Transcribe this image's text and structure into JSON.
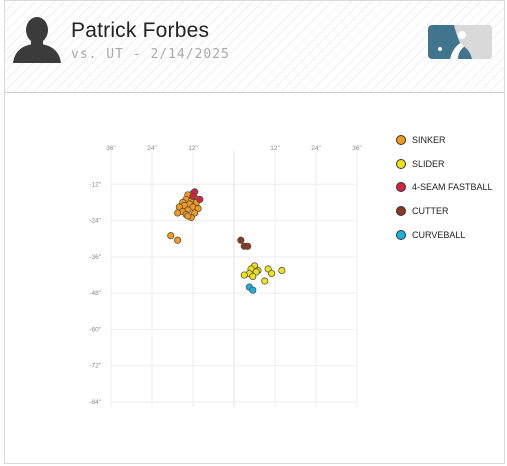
{
  "header": {
    "player_name": "Patrick Forbes",
    "subtitle": "vs. UT - 2/14/2025",
    "avatar_icon": "player-silhouette-icon",
    "logo_icon": "mlb-logo-icon",
    "logo_colors": [
      "#41748d",
      "#ffffff"
    ]
  },
  "chart_data": {
    "type": "scatter",
    "title": "",
    "xlabel": "",
    "ylabel": "",
    "x_ticks": [
      "36\"",
      "24\"",
      "12\"",
      "12\"",
      "24\"",
      "36\""
    ],
    "x_tick_values": [
      -36,
      -24,
      -12,
      12,
      24,
      36
    ],
    "y_ticks": [
      "-12\"",
      "-24\"",
      "-36\"",
      "-48\"",
      "-60\"",
      "-72\"",
      "-84\""
    ],
    "y_tick_values": [
      -12,
      -24,
      -36,
      -48,
      -60,
      -72,
      -84
    ],
    "xlim": [
      -36,
      36
    ],
    "ylim": [
      -84,
      0
    ],
    "grid": true,
    "legend_position": "right",
    "series": [
      {
        "name": "SINKER",
        "color": "#f29a1a",
        "points": [
          [
            -12,
            -15
          ],
          [
            -13.5,
            -15.5
          ],
          [
            -11.5,
            -16.5
          ],
          [
            -14,
            -17
          ],
          [
            -12.5,
            -17.5
          ],
          [
            -15,
            -18
          ],
          [
            -13,
            -18.5
          ],
          [
            -11,
            -18
          ],
          [
            -14.5,
            -19
          ],
          [
            -12,
            -19.5
          ],
          [
            -16,
            -19.5
          ],
          [
            -10.5,
            -20
          ],
          [
            -13.5,
            -20.5
          ],
          [
            -15,
            -21
          ],
          [
            -11.5,
            -21.5
          ],
          [
            -14,
            -22
          ],
          [
            -12.5,
            -23
          ],
          [
            -13.5,
            -22.5
          ],
          [
            -16.5,
            -21.5
          ],
          [
            -18.5,
            -29
          ],
          [
            -16.5,
            -30.5
          ]
        ]
      },
      {
        "name": "SLIDER",
        "color": "#eee21a",
        "points": [
          [
            6,
            -39
          ],
          [
            5,
            -40
          ],
          [
            7,
            -40.5
          ],
          [
            6.5,
            -41
          ],
          [
            4.5,
            -41.5
          ],
          [
            3,
            -42
          ],
          [
            5.5,
            -42.5
          ],
          [
            10,
            -40
          ],
          [
            11,
            -41.5
          ],
          [
            14,
            -40.5
          ],
          [
            9,
            -44
          ]
        ]
      },
      {
        "name": "4-SEAM FASTBALL",
        "color": "#d6213f",
        "points": [
          [
            -11.5,
            -14.5
          ],
          [
            -10,
            -17
          ],
          [
            -12,
            -16
          ]
        ]
      },
      {
        "name": "CUTTER",
        "color": "#8b3a22",
        "points": [
          [
            2,
            -30.5
          ],
          [
            3,
            -32.5
          ],
          [
            4,
            -32.5
          ]
        ]
      },
      {
        "name": "CURVEBALL",
        "color": "#19b3e0",
        "points": [
          [
            4.5,
            -46
          ],
          [
            5.5,
            -47
          ]
        ]
      }
    ]
  }
}
